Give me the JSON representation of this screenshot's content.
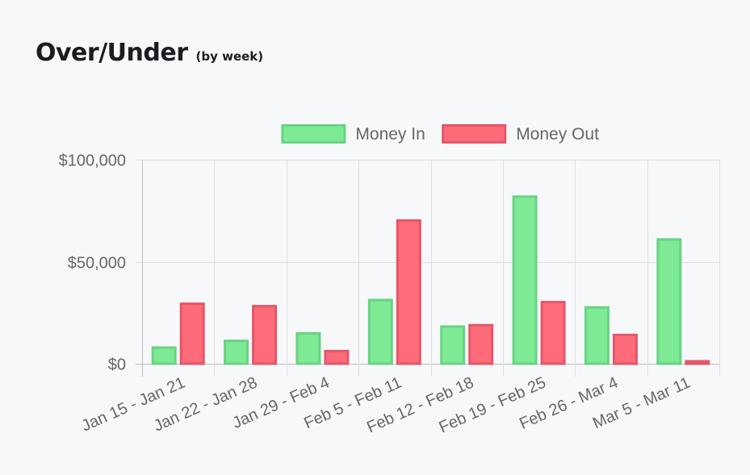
{
  "page": {
    "title": "Over/Under",
    "subtitle": "(by week)"
  },
  "chart_data": {
    "type": "bar",
    "title": "Over/Under",
    "subtitle": "(by week)",
    "xlabel": "",
    "ylabel": "",
    "ylim": [
      0,
      100000
    ],
    "yticks": [
      0,
      50000,
      100000
    ],
    "ytick_labels": [
      "$0",
      "$50,000",
      "$100,000"
    ],
    "grid": true,
    "legend_position": "top",
    "categories": [
      "Jan 15 - Jan 21",
      "Jan 22 - Jan 28",
      "Jan 29 - Feb 4",
      "Feb 5 - Feb 11",
      "Feb 12 - Feb 18",
      "Feb 19 - Feb 25",
      "Feb 26 - Mar 4",
      "Mar 5 - Mar 11"
    ],
    "series": [
      {
        "name": "Money In",
        "fill": "#7eea94",
        "stroke": "#69d384",
        "values": [
          8500,
          11800,
          15500,
          31800,
          18800,
          82500,
          28200,
          61500
        ]
      },
      {
        "name": "Money Out",
        "fill": "#ff6b78",
        "stroke": "#e2576a",
        "values": [
          30000,
          28800,
          6800,
          70800,
          19500,
          30800,
          14700,
          1800
        ]
      }
    ]
  }
}
